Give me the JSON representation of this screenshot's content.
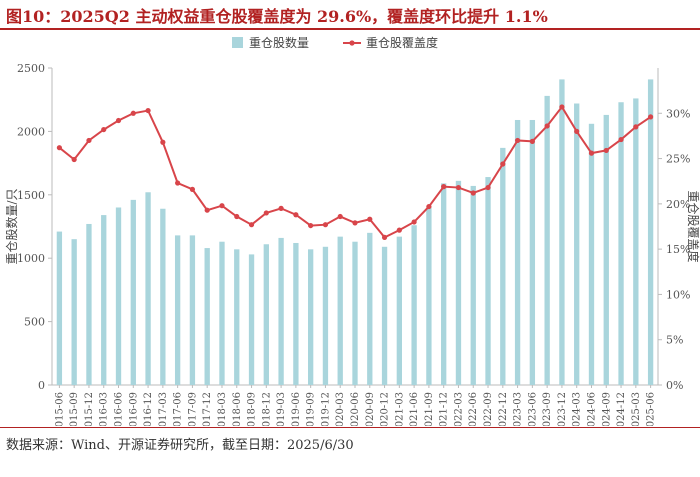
{
  "header": {
    "title": "图10：2025Q2 主动权益重仓股覆盖度为 29.6%，覆盖度环比提升 1.1%"
  },
  "footer": {
    "source": "数据来源：Wind、开源证券研究所，截至日期：2025/6/30"
  },
  "colors": {
    "bar": "#a9d5dc",
    "line": "#d8454a",
    "title": "#b22222",
    "grid": "#e5e5e5"
  },
  "chart_data": {
    "type": "bar",
    "categories": [
      "2015-06",
      "2015-09",
      "2015-12",
      "2016-03",
      "2016-06",
      "2016-09",
      "2016-12",
      "2017-03",
      "2017-06",
      "2017-09",
      "2017-12",
      "2018-03",
      "2018-06",
      "2018-09",
      "2018-12",
      "2019-03",
      "2019-06",
      "2019-09",
      "2019-12",
      "2020-03",
      "2020-06",
      "2020-09",
      "2020-12",
      "2021-03",
      "2021-06",
      "2021-09",
      "2021-12",
      "2022-03",
      "2022-06",
      "2022-09",
      "2022-12",
      "2023-03",
      "2023-06",
      "2023-09",
      "2023-12",
      "2024-03",
      "2024-06",
      "2024-09",
      "2024-12",
      "2025-03",
      "2025-06"
    ],
    "series": [
      {
        "name": "重仓股数量",
        "type": "bar",
        "axis": "left",
        "values": [
          1210,
          1150,
          1270,
          1340,
          1400,
          1460,
          1520,
          1390,
          1180,
          1180,
          1080,
          1130,
          1070,
          1030,
          1110,
          1160,
          1120,
          1070,
          1090,
          1170,
          1130,
          1200,
          1090,
          1170,
          1260,
          1400,
          1590,
          1610,
          1570,
          1640,
          1870,
          2090,
          2090,
          2280,
          2410,
          2220,
          2060,
          2130,
          2230,
          2260,
          2410
        ]
      },
      {
        "name": "重仓股覆盖度",
        "type": "line",
        "axis": "right",
        "values": [
          26.2,
          24.9,
          27.0,
          28.2,
          29.2,
          30.0,
          30.3,
          26.8,
          22.3,
          21.6,
          19.3,
          19.8,
          18.6,
          17.7,
          19.0,
          19.5,
          18.8,
          17.6,
          17.7,
          18.6,
          17.9,
          18.3,
          16.3,
          17.1,
          18.0,
          19.7,
          21.9,
          21.8,
          21.2,
          21.8,
          24.4,
          27.0,
          26.9,
          28.6,
          30.7,
          28.0,
          25.6,
          25.9,
          27.1,
          28.5,
          29.6
        ]
      }
    ],
    "y_left": {
      "label": "重仓股数量/只",
      "lim": [
        0,
        2500
      ],
      "ticks": [
        "0",
        "500",
        "1000",
        "1500",
        "2000",
        "2500"
      ]
    },
    "y_right": {
      "label": "重仓股覆盖度",
      "lim": [
        0,
        35
      ],
      "ticks": [
        "0%",
        "5%",
        "10%",
        "15%",
        "20%",
        "25%",
        "30%"
      ]
    },
    "legend": {
      "position": "top-center"
    },
    "grid": false
  }
}
